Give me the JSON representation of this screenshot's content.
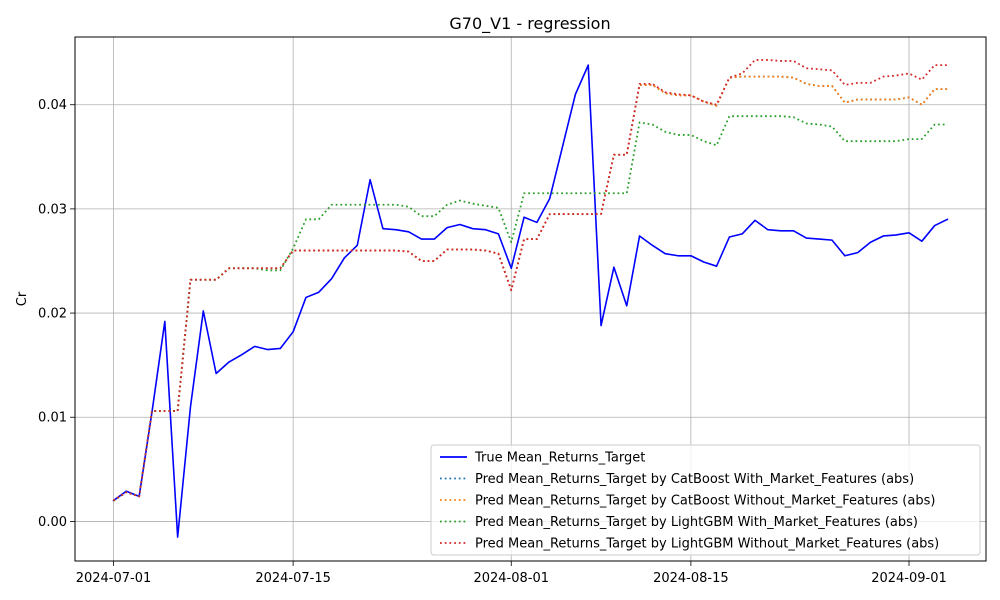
{
  "chart_data": {
    "type": "line",
    "title": "G70_V1 - regression",
    "xlabel": "",
    "ylabel": "Cr",
    "xlim": [
      "2024-06-28",
      "2024-09-07"
    ],
    "ylim": [
      -0.0038,
      0.0465
    ],
    "x_ticks": [
      "2024-07-01",
      "2024-07-15",
      "2024-08-01",
      "2024-08-15",
      "2024-09-01"
    ],
    "y_ticks": [
      0.0,
      0.01,
      0.02,
      0.03,
      0.04
    ],
    "y_tick_labels": [
      "0.00",
      "0.01",
      "0.02",
      "0.03",
      "0.04"
    ],
    "grid": true,
    "legend_position": "bottom-right",
    "x": [
      "2024-07-01",
      "2024-07-02",
      "2024-07-03",
      "2024-07-04",
      "2024-07-05",
      "2024-07-06",
      "2024-07-07",
      "2024-07-08",
      "2024-07-09",
      "2024-07-10",
      "2024-07-11",
      "2024-07-12",
      "2024-07-13",
      "2024-07-14",
      "2024-07-15",
      "2024-07-16",
      "2024-07-17",
      "2024-07-18",
      "2024-07-19",
      "2024-07-20",
      "2024-07-21",
      "2024-07-22",
      "2024-07-23",
      "2024-07-24",
      "2024-07-25",
      "2024-07-26",
      "2024-07-27",
      "2024-07-28",
      "2024-07-29",
      "2024-07-30",
      "2024-07-31",
      "2024-08-01",
      "2024-08-02",
      "2024-08-03",
      "2024-08-04",
      "2024-08-05",
      "2024-08-06",
      "2024-08-07",
      "2024-08-08",
      "2024-08-09",
      "2024-08-10",
      "2024-08-11",
      "2024-08-12",
      "2024-08-13",
      "2024-08-14",
      "2024-08-15",
      "2024-08-16",
      "2024-08-17",
      "2024-08-18",
      "2024-08-19",
      "2024-08-20",
      "2024-08-21",
      "2024-08-22",
      "2024-08-23",
      "2024-08-24",
      "2024-08-25",
      "2024-08-26",
      "2024-08-27",
      "2024-08-28",
      "2024-08-29",
      "2024-08-30",
      "2024-08-31",
      "2024-09-01",
      "2024-09-02",
      "2024-09-03",
      "2024-09-04"
    ],
    "series": [
      {
        "name": "True Mean_Returns_Target",
        "color": "#0000ff",
        "style": "solid",
        "values": [
          0.002,
          0.0029,
          0.0024,
          0.0105,
          0.0192,
          -0.0015,
          0.011,
          0.0202,
          0.0142,
          0.0153,
          0.016,
          0.0168,
          0.0165,
          0.0166,
          0.0182,
          0.0215,
          0.022,
          0.0233,
          0.0253,
          0.0265,
          0.0328,
          0.0281,
          0.028,
          0.0278,
          0.0271,
          0.0271,
          0.0282,
          0.0285,
          0.0281,
          0.028,
          0.0276,
          0.0243,
          0.0292,
          0.0287,
          0.031,
          0.036,
          0.041,
          0.0438,
          0.0188,
          0.0244,
          0.0207,
          0.0274,
          0.0265,
          0.0257,
          0.0255,
          0.0255,
          0.0249,
          0.0245,
          0.0273,
          0.0276,
          0.0289,
          0.028,
          0.0279,
          0.0279,
          0.0272,
          0.0271,
          0.027,
          0.0255,
          0.0258,
          0.0268,
          0.0274,
          0.0275,
          0.0277,
          0.0269,
          0.0284,
          0.029
        ]
      },
      {
        "name": "Pred Mean_Returns_Target by CatBoost With_Market_Features (abs)",
        "color": "#1f77b4",
        "style": "dotted",
        "values": [
          0.002,
          0.0028,
          0.0024,
          0.0106,
          0.0106,
          0.0106,
          0.0232,
          0.0232,
          0.0232,
          0.0243,
          0.0243,
          0.0243,
          0.0243,
          0.0243,
          0.026,
          0.026,
          0.026,
          0.026,
          0.026,
          0.026,
          0.026,
          0.026,
          0.026,
          0.0259,
          0.025,
          0.025,
          0.0261,
          0.0261,
          0.0261,
          0.026,
          0.0257,
          0.0222,
          0.0271,
          0.0271,
          0.0295,
          0.0295,
          0.0295,
          0.0295,
          0.0295,
          0.0352,
          0.0352,
          0.0419,
          0.0419,
          0.0411,
          0.0409,
          0.0409,
          0.0403,
          0.0399,
          0.0426,
          0.0427,
          0.0427,
          0.0427,
          0.0427,
          0.0426,
          0.042,
          0.0418,
          0.0418,
          0.0402,
          0.0405,
          0.0405,
          0.0405,
          0.0405,
          0.0407,
          0.04,
          0.0415,
          0.0415
        ]
      },
      {
        "name": "Pred Mean_Returns_Target by CatBoost Without_Market_Features (abs)",
        "color": "#ff7f0e",
        "style": "dotted",
        "values": [
          0.002,
          0.0028,
          0.0024,
          0.0106,
          0.0106,
          0.0106,
          0.0232,
          0.0232,
          0.0232,
          0.0243,
          0.0243,
          0.0243,
          0.0243,
          0.0243,
          0.026,
          0.026,
          0.026,
          0.026,
          0.026,
          0.026,
          0.026,
          0.026,
          0.026,
          0.0259,
          0.025,
          0.025,
          0.0261,
          0.0261,
          0.0261,
          0.026,
          0.0257,
          0.0222,
          0.0271,
          0.0271,
          0.0295,
          0.0295,
          0.0295,
          0.0295,
          0.0295,
          0.0352,
          0.0352,
          0.0419,
          0.0419,
          0.0411,
          0.0409,
          0.0409,
          0.0403,
          0.0399,
          0.0426,
          0.0427,
          0.0427,
          0.0427,
          0.0427,
          0.0426,
          0.042,
          0.0418,
          0.0418,
          0.0402,
          0.0405,
          0.0405,
          0.0405,
          0.0405,
          0.0407,
          0.04,
          0.0415,
          0.0415
        ]
      },
      {
        "name": "Pred Mean_Returns_Target by LightGBM With_Market_Features (abs)",
        "color": "#2ca02c",
        "style": "dotted",
        "values": [
          0.002,
          0.0028,
          0.0024,
          0.0106,
          0.0106,
          0.0106,
          0.0232,
          0.0232,
          0.0232,
          0.0243,
          0.0243,
          0.0243,
          0.0241,
          0.0241,
          0.0262,
          0.029,
          0.029,
          0.0304,
          0.0304,
          0.0304,
          0.0304,
          0.0304,
          0.0304,
          0.0302,
          0.0293,
          0.0293,
          0.0304,
          0.0308,
          0.0305,
          0.0303,
          0.0301,
          0.0268,
          0.0315,
          0.0315,
          0.0315,
          0.0315,
          0.0315,
          0.0315,
          0.0315,
          0.0315,
          0.0315,
          0.0383,
          0.0381,
          0.0374,
          0.0371,
          0.0371,
          0.0365,
          0.0361,
          0.0389,
          0.0389,
          0.0389,
          0.0389,
          0.0389,
          0.0388,
          0.0382,
          0.0381,
          0.0379,
          0.0365,
          0.0365,
          0.0365,
          0.0365,
          0.0365,
          0.0367,
          0.0367,
          0.0381,
          0.0381
        ]
      },
      {
        "name": "Pred Mean_Returns_Target by LightGBM Without_Market_Features (abs)",
        "color": "#d62728",
        "style": "dotted",
        "values": [
          0.002,
          0.0028,
          0.0024,
          0.0106,
          0.0106,
          0.0106,
          0.0232,
          0.0232,
          0.0232,
          0.0243,
          0.0243,
          0.0243,
          0.0243,
          0.0243,
          0.026,
          0.026,
          0.026,
          0.026,
          0.026,
          0.026,
          0.026,
          0.026,
          0.026,
          0.0259,
          0.025,
          0.025,
          0.0261,
          0.0261,
          0.0261,
          0.026,
          0.0257,
          0.0222,
          0.0271,
          0.0271,
          0.0295,
          0.0295,
          0.0295,
          0.0295,
          0.0295,
          0.0352,
          0.0352,
          0.042,
          0.042,
          0.0412,
          0.041,
          0.0409,
          0.0403,
          0.04,
          0.0426,
          0.043,
          0.0443,
          0.0443,
          0.0442,
          0.0442,
          0.0435,
          0.0434,
          0.0433,
          0.0419,
          0.0421,
          0.0421,
          0.0427,
          0.0428,
          0.043,
          0.0424,
          0.0438,
          0.0438
        ]
      }
    ]
  }
}
